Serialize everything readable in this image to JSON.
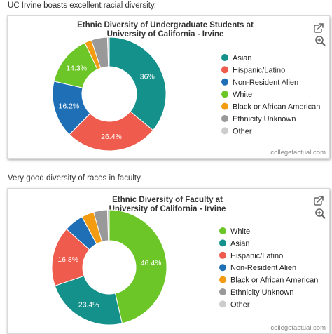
{
  "intro_1": "UC Irvine boasts excellent racial diversity.",
  "intro_2": "Very good diversity of races in faculty.",
  "credit": "collegefactual.com",
  "icons": [
    "share-icon",
    "zoom-in-icon"
  ],
  "chart_data": [
    {
      "type": "pie",
      "title_lines": [
        "Ethnic Diversity of Undergraduate Students at",
        "University of California - Irvine"
      ],
      "slices": [
        {
          "name": "Asian",
          "value": 36.0,
          "color": "#15918b",
          "label": "36%"
        },
        {
          "name": "Hispanic/Latino",
          "value": 26.4,
          "color": "#ef5b4c",
          "label": "26.4%"
        },
        {
          "name": "Non-Resident Alien",
          "value": 16.2,
          "color": "#1e6fb5",
          "label": "16.2%"
        },
        {
          "name": "White",
          "value": 14.3,
          "color": "#6cc628",
          "label": "14.3%"
        },
        {
          "name": "Black or African American",
          "value": 2.0,
          "color": "#f39c12",
          "label": ""
        },
        {
          "name": "Ethnicity Unknown",
          "value": 4.6,
          "color": "#999999",
          "label": ""
        },
        {
          "name": "Other",
          "value": 0.5,
          "color": "#cccccc",
          "label": ""
        }
      ],
      "legend": [
        "Asian",
        "Hispanic/Latino",
        "Non-Resident Alien",
        "White",
        "Black or African American",
        "Ethnicity Unknown",
        "Other"
      ],
      "legend_placement": "right"
    },
    {
      "type": "pie",
      "title_lines": [
        "Ethnic Diversity of Faculty at",
        "University of California - Irvine"
      ],
      "slices": [
        {
          "name": "White",
          "value": 46.4,
          "color": "#6cc628",
          "label": "46.4%"
        },
        {
          "name": "Asian",
          "value": 23.4,
          "color": "#15918b",
          "label": "23.4%"
        },
        {
          "name": "Hispanic/Latino",
          "value": 16.8,
          "color": "#ef5b4c",
          "label": "16.8%"
        },
        {
          "name": "Non-Resident Alien",
          "value": 5.5,
          "color": "#1e6fb5",
          "label": ""
        },
        {
          "name": "Black or African American",
          "value": 3.5,
          "color": "#f39c12",
          "label": ""
        },
        {
          "name": "Ethnicity Unknown",
          "value": 3.9,
          "color": "#999999",
          "label": ""
        },
        {
          "name": "Other",
          "value": 0.5,
          "color": "#cccccc",
          "label": ""
        }
      ],
      "legend": [
        "White",
        "Asian",
        "Hispanic/Latino",
        "Non-Resident Alien",
        "Black or African American",
        "Ethnicity Unknown",
        "Other"
      ],
      "legend_placement": "right"
    }
  ]
}
